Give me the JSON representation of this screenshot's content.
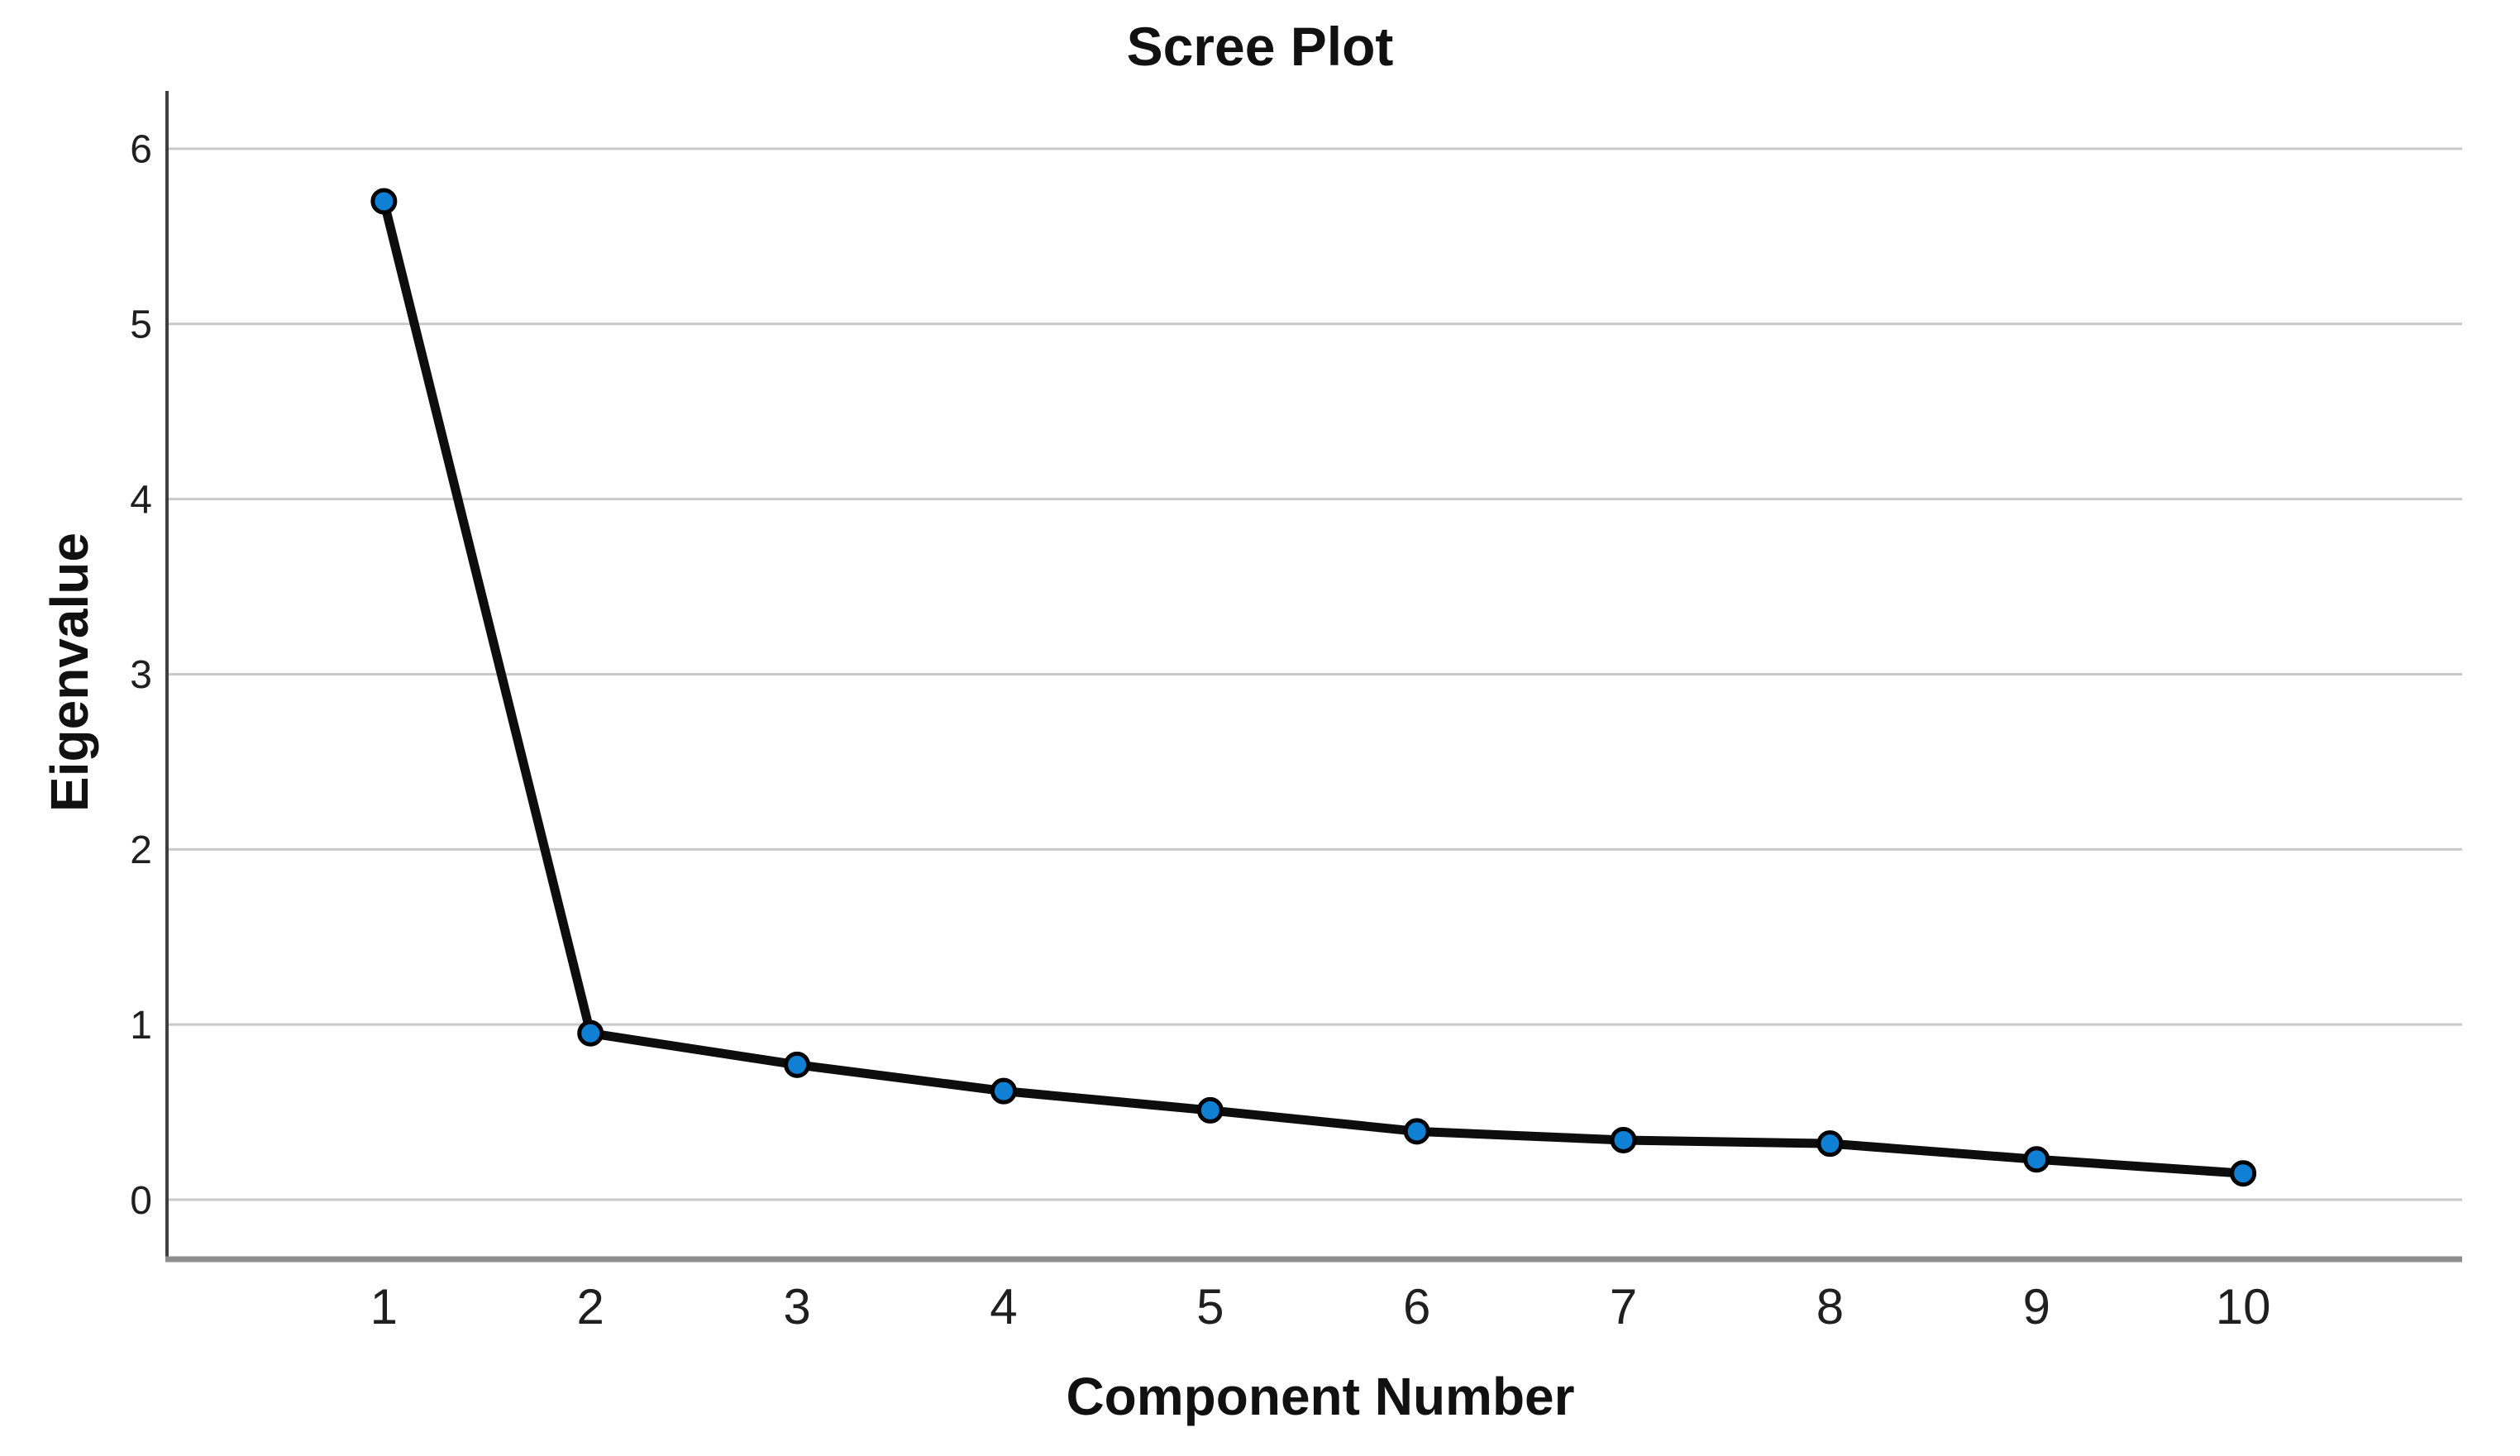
{
  "chart_data": {
    "type": "line",
    "title": "Scree Plot",
    "xlabel": "Component Number",
    "ylabel": "Eigenvalue",
    "x": [
      1,
      2,
      3,
      4,
      5,
      6,
      7,
      8,
      9,
      10
    ],
    "series": [
      {
        "name": "Eigenvalue",
        "values": [
          5.7,
          0.95,
          0.77,
          0.62,
          0.51,
          0.39,
          0.34,
          0.32,
          0.23,
          0.15
        ]
      }
    ],
    "xticks": [
      "1",
      "2",
      "3",
      "4",
      "5",
      "6",
      "7",
      "8",
      "9",
      "10"
    ],
    "yticks": [
      "0",
      "1",
      "2",
      "3",
      "4",
      "5",
      "6"
    ],
    "ytick_values": [
      0,
      1,
      2,
      3,
      4,
      5,
      6
    ],
    "xlim": [
      -0.05,
      11.06
    ],
    "ylim": [
      -0.34,
      6.33
    ],
    "grid": "horizontal",
    "legend": "none",
    "colors": {
      "background": "#ffffff",
      "line": "#0d0d0d",
      "marker_fill": "#1080d4",
      "marker_stroke": "#000000",
      "gridline": "#c9c9c9",
      "y_axis_line": "#3f3f3f",
      "x_axis_line": "#8e8e8e",
      "tick_text": "#1f1f1f"
    }
  }
}
